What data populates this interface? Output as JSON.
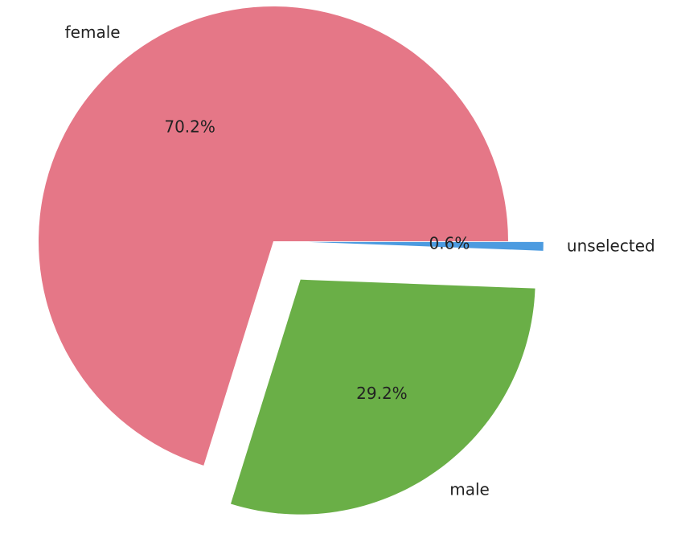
{
  "chart_data": {
    "type": "pie",
    "categories": [
      "female",
      "male",
      "unselected"
    ],
    "values": [
      70.2,
      29.2,
      0.6
    ],
    "value_labels": [
      "70.2%",
      "29.2%",
      "0.6%"
    ],
    "colors": [
      "#e57787",
      "#6aaf47",
      "#4c9be0"
    ]
  }
}
